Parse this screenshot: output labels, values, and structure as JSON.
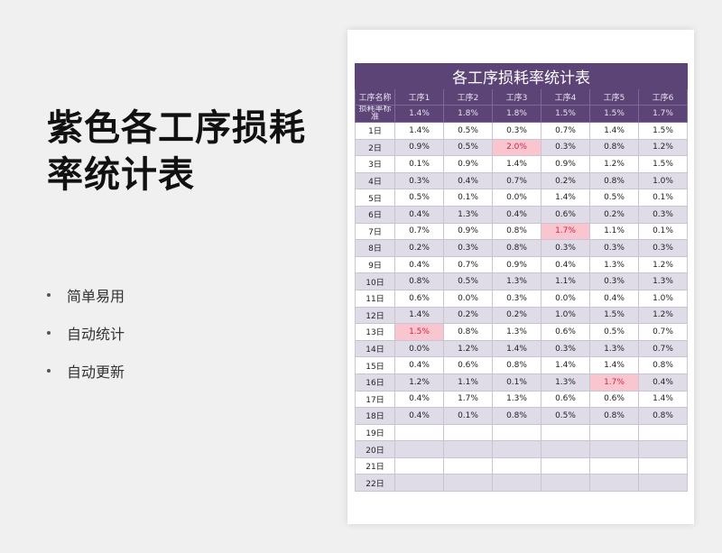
{
  "title": "紫色各工序损耗率统计表",
  "features": [
    "简单易用",
    "自动统计",
    "自动更新"
  ],
  "sheet": {
    "table_title": "各工序损耗率统计表",
    "headers": [
      "工序名称",
      "工序1",
      "工序2",
      "工序3",
      "工序4",
      "工序5",
      "工序6"
    ],
    "standard_label": "损耗率标准",
    "standard": [
      "1.4%",
      "1.8%",
      "1.8%",
      "1.5%",
      "1.5%",
      "1.7%"
    ],
    "highlight_color": "#f9c6cf",
    "rows": [
      {
        "day": "1日",
        "values": [
          "1.4%",
          "0.5%",
          "0.3%",
          "0.7%",
          "1.4%",
          "1.5%"
        ],
        "highlight": []
      },
      {
        "day": "2日",
        "values": [
          "0.9%",
          "0.5%",
          "2.0%",
          "0.3%",
          "0.8%",
          "1.2%"
        ],
        "highlight": [
          2
        ]
      },
      {
        "day": "3日",
        "values": [
          "0.1%",
          "0.9%",
          "1.4%",
          "0.9%",
          "1.2%",
          "1.5%"
        ],
        "highlight": []
      },
      {
        "day": "4日",
        "values": [
          "0.3%",
          "0.4%",
          "0.7%",
          "0.2%",
          "0.8%",
          "1.0%"
        ],
        "highlight": []
      },
      {
        "day": "5日",
        "values": [
          "0.5%",
          "0.1%",
          "0.0%",
          "1.4%",
          "0.5%",
          "0.1%"
        ],
        "highlight": []
      },
      {
        "day": "6日",
        "values": [
          "0.4%",
          "1.3%",
          "0.4%",
          "0.6%",
          "0.2%",
          "0.3%"
        ],
        "highlight": []
      },
      {
        "day": "7日",
        "values": [
          "0.7%",
          "0.9%",
          "0.8%",
          "1.7%",
          "1.1%",
          "0.1%"
        ],
        "highlight": [
          3
        ]
      },
      {
        "day": "8日",
        "values": [
          "0.2%",
          "0.3%",
          "0.8%",
          "0.3%",
          "0.3%",
          "0.3%"
        ],
        "highlight": []
      },
      {
        "day": "9日",
        "values": [
          "0.4%",
          "0.7%",
          "0.9%",
          "0.4%",
          "1.3%",
          "1.2%"
        ],
        "highlight": []
      },
      {
        "day": "10日",
        "values": [
          "0.8%",
          "0.5%",
          "1.3%",
          "1.1%",
          "0.3%",
          "1.3%"
        ],
        "highlight": []
      },
      {
        "day": "11日",
        "values": [
          "0.6%",
          "0.0%",
          "0.3%",
          "0.0%",
          "0.4%",
          "1.0%"
        ],
        "highlight": []
      },
      {
        "day": "12日",
        "values": [
          "1.4%",
          "0.2%",
          "0.2%",
          "1.0%",
          "1.5%",
          "1.2%"
        ],
        "highlight": []
      },
      {
        "day": "13日",
        "values": [
          "1.5%",
          "0.8%",
          "1.3%",
          "0.6%",
          "0.5%",
          "0.7%"
        ],
        "highlight": [
          0
        ]
      },
      {
        "day": "14日",
        "values": [
          "0.0%",
          "1.2%",
          "1.4%",
          "0.3%",
          "1.3%",
          "0.7%"
        ],
        "highlight": []
      },
      {
        "day": "15日",
        "values": [
          "0.4%",
          "0.6%",
          "0.8%",
          "1.4%",
          "1.4%",
          "0.8%"
        ],
        "highlight": []
      },
      {
        "day": "16日",
        "values": [
          "1.2%",
          "1.1%",
          "0.1%",
          "1.3%",
          "1.7%",
          "0.4%"
        ],
        "highlight": [
          4
        ]
      },
      {
        "day": "17日",
        "values": [
          "0.4%",
          "1.7%",
          "1.3%",
          "0.6%",
          "0.6%",
          "1.4%"
        ],
        "highlight": []
      },
      {
        "day": "18日",
        "values": [
          "0.4%",
          "0.1%",
          "0.8%",
          "0.5%",
          "0.8%",
          "0.8%"
        ],
        "highlight": []
      },
      {
        "day": "19日",
        "values": [
          "",
          "",
          "",
          "",
          "",
          ""
        ],
        "highlight": []
      },
      {
        "day": "20日",
        "values": [
          "",
          "",
          "",
          "",
          "",
          ""
        ],
        "highlight": []
      },
      {
        "day": "21日",
        "values": [
          "",
          "",
          "",
          "",
          "",
          ""
        ],
        "highlight": []
      },
      {
        "day": "22日",
        "values": [
          "",
          "",
          "",
          "",
          "",
          ""
        ],
        "highlight": []
      }
    ]
  }
}
